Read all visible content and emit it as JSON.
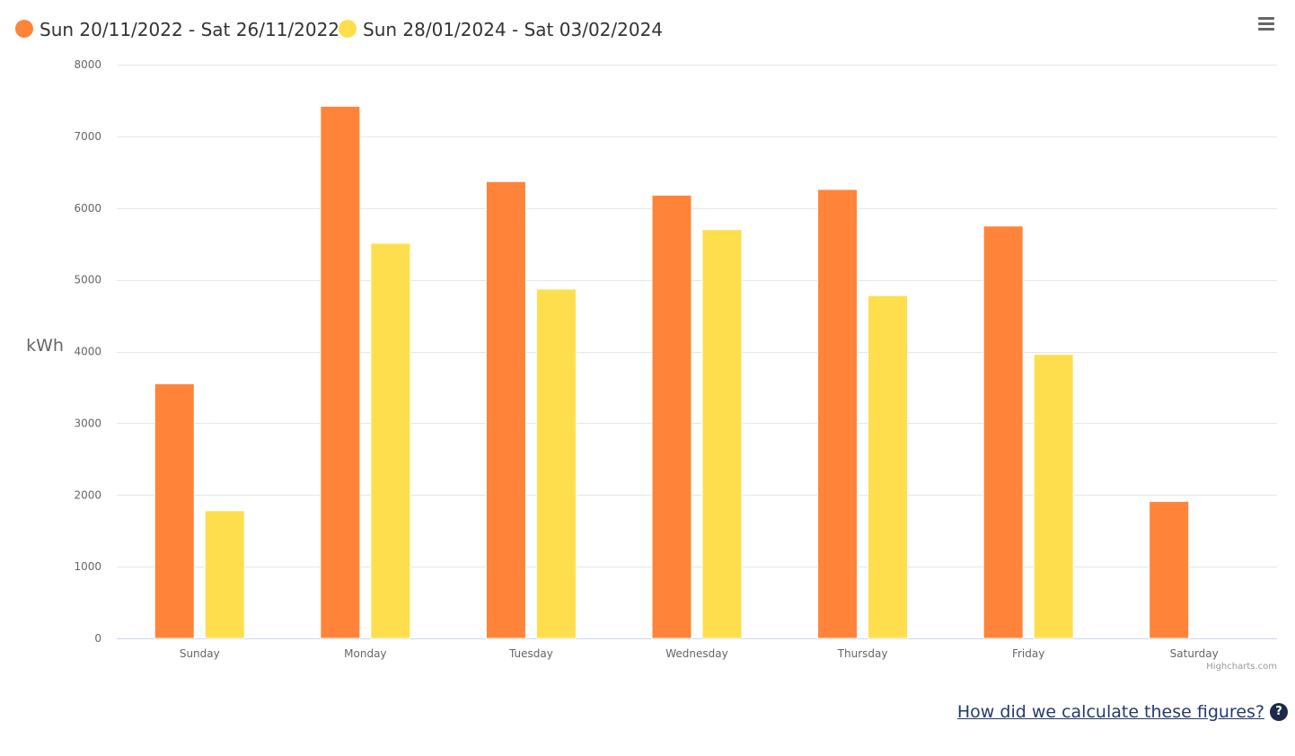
{
  "chart_data": {
    "type": "bar",
    "categories": [
      "Sunday",
      "Monday",
      "Tuesday",
      "Wednesday",
      "Thursday",
      "Friday",
      "Saturday"
    ],
    "series": [
      {
        "name": "Sun 20/11/2022 - Sat 26/11/2022",
        "color": "#ff8439",
        "values": [
          3550,
          7420,
          6370,
          6180,
          6260,
          5750,
          1910
        ]
      },
      {
        "name": "Sun 28/01/2024 - Sat 03/02/2024",
        "color": "#ffde4d",
        "values": [
          1780,
          5510,
          4870,
          5700,
          4780,
          3960,
          null
        ]
      }
    ],
    "ylabel": "kWh",
    "ylim": [
      0,
      8000
    ],
    "yticks": [
      "0",
      "1000",
      "2000",
      "3000",
      "4000",
      "5000",
      "6000",
      "7000",
      "8000"
    ],
    "grid": true,
    "legend_position": "top-left"
  },
  "credits": "Highcharts.com",
  "footer": {
    "link_text": "How did we calculate these figures?",
    "help_icon_glyph": "?"
  },
  "menu": {
    "icon": "hamburger-menu-icon"
  }
}
